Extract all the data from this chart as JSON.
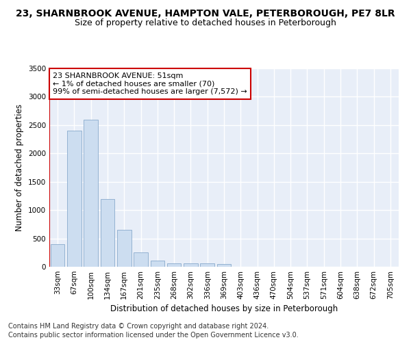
{
  "title1": "23, SHARNBROOK AVENUE, HAMPTON VALE, PETERBOROUGH, PE7 8LR",
  "title2": "Size of property relative to detached houses in Peterborough",
  "xlabel": "Distribution of detached houses by size in Peterborough",
  "ylabel": "Number of detached properties",
  "categories": [
    "33sqm",
    "67sqm",
    "100sqm",
    "134sqm",
    "167sqm",
    "201sqm",
    "235sqm",
    "268sqm",
    "302sqm",
    "336sqm",
    "369sqm",
    "403sqm",
    "436sqm",
    "470sqm",
    "504sqm",
    "537sqm",
    "571sqm",
    "604sqm",
    "638sqm",
    "672sqm",
    "705sqm"
  ],
  "values": [
    400,
    2400,
    2600,
    1200,
    650,
    250,
    105,
    65,
    60,
    55,
    50,
    0,
    0,
    0,
    0,
    0,
    0,
    0,
    0,
    0,
    0
  ],
  "bar_color": "#ccddf0",
  "bar_edge_color": "#88aacc",
  "annotation_text": "23 SHARNBROOK AVENUE: 51sqm\n← 1% of detached houses are smaller (70)\n99% of semi-detached houses are larger (7,572) →",
  "annotation_box_color": "#ffffff",
  "annotation_box_edge_color": "#cc0000",
  "ylim": [
    0,
    3500
  ],
  "yticks": [
    0,
    500,
    1000,
    1500,
    2000,
    2500,
    3000,
    3500
  ],
  "background_color": "#e8eef8",
  "grid_color": "#ffffff",
  "footer1": "Contains HM Land Registry data © Crown copyright and database right 2024.",
  "footer2": "Contains public sector information licensed under the Open Government Licence v3.0.",
  "title1_fontsize": 10,
  "title2_fontsize": 9,
  "xlabel_fontsize": 8.5,
  "ylabel_fontsize": 8.5,
  "tick_fontsize": 7.5,
  "annotation_fontsize": 8,
  "footer_fontsize": 7
}
